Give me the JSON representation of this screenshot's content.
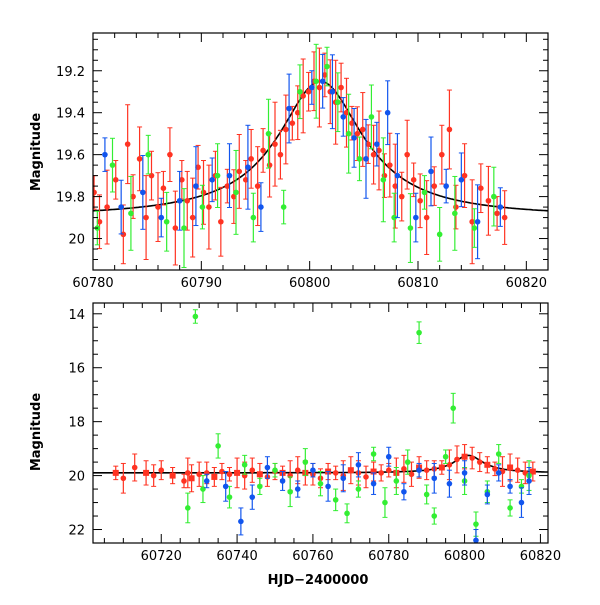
{
  "chart_data": [
    {
      "type": "scatter",
      "title": "",
      "xlabel": "",
      "ylabel": "Magnitude",
      "xlim": [
        60780,
        60822
      ],
      "ylim": [
        20.15,
        19.02
      ],
      "y_inverted": true,
      "grid": false,
      "xticks": [
        60780,
        60790,
        60800,
        60810,
        60820
      ],
      "yticks": [
        19.2,
        19.4,
        19.6,
        19.8,
        20.0
      ],
      "xtick_labels": [
        "60780",
        "60790",
        "60800",
        "60810",
        "60820"
      ],
      "ytick_labels": [
        "19.2",
        "19.4",
        "19.6",
        "19.8",
        "20"
      ],
      "colors": {
        "green": "#33ee33",
        "blue": "#1155ee",
        "red": "#ff3322",
        "model": "#000000"
      },
      "model_curve": {
        "baseline": 19.9,
        "peak_mag": 19.25,
        "t0": 60801,
        "half_width": 4.8
      },
      "series": [
        {
          "color": "red",
          "points": [
            [
              60780.1,
              19.78
            ],
            [
              60780.6,
              19.92
            ],
            [
              60781.3,
              19.85
            ],
            [
              60782.1,
              19.72
            ],
            [
              60782.8,
              19.98
            ],
            [
              60783.2,
              19.55
            ],
            [
              60783.7,
              19.8
            ],
            [
              60784.3,
              19.62
            ],
            [
              60784.9,
              19.9
            ],
            [
              60785.4,
              19.7
            ],
            [
              60786.0,
              19.85
            ],
            [
              60786.5,
              19.76
            ],
            [
              60787.1,
              19.6
            ],
            [
              60787.6,
              19.95
            ],
            [
              60788.2,
              19.72
            ],
            [
              60788.7,
              19.82
            ],
            [
              60789.2,
              19.9
            ],
            [
              60789.7,
              19.66
            ],
            [
              60790.2,
              19.78
            ],
            [
              60790.7,
              19.85
            ],
            [
              60791.3,
              19.7
            ],
            [
              60791.8,
              19.92
            ],
            [
              60792.4,
              19.75
            ],
            [
              60793.0,
              19.8
            ],
            [
              60793.5,
              19.68
            ],
            [
              60794.1,
              19.72
            ],
            [
              60794.6,
              19.62
            ],
            [
              60795.2,
              19.75
            ],
            [
              60795.7,
              19.58
            ],
            [
              60796.3,
              19.65
            ],
            [
              60796.8,
              19.55
            ],
            [
              60797.3,
              19.6
            ],
            [
              60797.8,
              19.48
            ],
            [
              60798.4,
              19.45
            ],
            [
              60798.9,
              19.4
            ],
            [
              60799.4,
              19.32
            ],
            [
              60799.9,
              19.3
            ],
            [
              60800.4,
              19.25
            ],
            [
              60800.9,
              19.28
            ],
            [
              60801.4,
              19.22
            ],
            [
              60801.9,
              19.3
            ],
            [
              60802.4,
              19.35
            ],
            [
              60802.9,
              19.28
            ],
            [
              60803.4,
              19.4
            ],
            [
              60803.9,
              19.45
            ],
            [
              60804.4,
              19.5
            ],
            [
              60804.9,
              19.48
            ],
            [
              60805.4,
              19.55
            ],
            [
              60805.9,
              19.6
            ],
            [
              60806.4,
              19.58
            ],
            [
              60806.9,
              19.7
            ],
            [
              60807.4,
              19.65
            ],
            [
              60807.9,
              19.75
            ],
            [
              60808.5,
              19.8
            ],
            [
              60809.0,
              19.6
            ],
            [
              60809.6,
              19.72
            ],
            [
              60810.2,
              19.82
            ],
            [
              60810.8,
              19.9
            ],
            [
              60811.5,
              19.75
            ],
            [
              60812.2,
              19.6
            ],
            [
              60812.9,
              19.48
            ],
            [
              60813.5,
              19.85
            ],
            [
              60814.3,
              19.7
            ],
            [
              60815.0,
              19.92
            ],
            [
              60815.8,
              19.76
            ],
            [
              60816.5,
              19.82
            ],
            [
              60817.3,
              19.88
            ],
            [
              60818.0,
              19.9
            ]
          ]
        },
        {
          "color": "green",
          "points": [
            [
              60780.4,
              19.95
            ],
            [
              60781.8,
              19.65
            ],
            [
              60783.5,
              19.88
            ],
            [
              60785.1,
              19.6
            ],
            [
              60786.8,
              19.92
            ],
            [
              60788.4,
              19.95
            ],
            [
              60790.1,
              19.85
            ],
            [
              60791.5,
              19.7
            ],
            [
              60793.2,
              19.78
            ],
            [
              60794.8,
              19.9
            ],
            [
              60796.2,
              19.5
            ],
            [
              60797.6,
              19.85
            ],
            [
              60799.1,
              19.3
            ],
            [
              60800.6,
              19.25
            ],
            [
              60801.6,
              19.18
            ],
            [
              60802.6,
              19.35
            ],
            [
              60803.6,
              19.5
            ],
            [
              60804.6,
              19.62
            ],
            [
              60805.7,
              19.42
            ],
            [
              60806.8,
              19.72
            ],
            [
              60807.8,
              19.9
            ],
            [
              60809.3,
              19.95
            ],
            [
              60810.6,
              19.78
            ],
            [
              60812.0,
              19.98
            ],
            [
              60813.4,
              19.88
            ],
            [
              60815.2,
              19.95
            ],
            [
              60817.0,
              19.8
            ]
          ]
        },
        {
          "color": "blue",
          "points": [
            [
              60781.1,
              19.6
            ],
            [
              60782.6,
              19.85
            ],
            [
              60784.6,
              19.78
            ],
            [
              60786.3,
              19.9
            ],
            [
              60788.0,
              19.82
            ],
            [
              60789.5,
              19.75
            ],
            [
              60791.0,
              19.72
            ],
            [
              60792.6,
              19.7
            ],
            [
              60794.3,
              19.66
            ],
            [
              60795.5,
              19.85
            ],
            [
              60798.1,
              19.38
            ],
            [
              60800.2,
              19.28
            ],
            [
              60801.2,
              19.25
            ],
            [
              60802.1,
              19.3
            ],
            [
              60803.1,
              19.42
            ],
            [
              60804.1,
              19.52
            ],
            [
              60805.2,
              19.62
            ],
            [
              60806.2,
              19.55
            ],
            [
              60807.2,
              19.4
            ],
            [
              60808.1,
              19.7
            ],
            [
              60809.8,
              19.9
            ],
            [
              60811.2,
              19.68
            ],
            [
              60812.6,
              19.75
            ],
            [
              60814.0,
              19.72
            ],
            [
              60815.5,
              19.92
            ],
            [
              60817.6,
              19.85
            ]
          ]
        }
      ]
    },
    {
      "type": "scatter",
      "title": "",
      "xlabel": "HJD−2400000",
      "ylabel": "Magnitude",
      "xlim": [
        60702,
        60822
      ],
      "ylim": [
        22.5,
        13.6
      ],
      "y_inverted": true,
      "grid": false,
      "xticks": [
        60720,
        60740,
        60760,
        60780,
        60800,
        60820
      ],
      "yticks": [
        14,
        16,
        18,
        20,
        22
      ],
      "xtick_labels": [
        "60720",
        "60740",
        "60760",
        "60780",
        "60800",
        "60820"
      ],
      "ytick_labels": [
        "14",
        "16",
        "18",
        "20",
        "22"
      ],
      "colors": {
        "green": "#33ee33",
        "blue": "#1155ee",
        "red": "#ff3322",
        "model": "#000000"
      },
      "model_curve": {
        "baseline": 19.9,
        "peak_mag": 19.25,
        "t0": 60801,
        "half_width": 4.8
      },
      "series": [
        {
          "color": "red",
          "points": [
            [
              60708,
              19.9
            ],
            [
              60710,
              20.1
            ],
            [
              60713,
              19.7
            ],
            [
              60716,
              19.9
            ],
            [
              60718,
              20.0
            ],
            [
              60720,
              19.8
            ],
            [
              60723,
              20.0
            ],
            [
              60726,
              20.2
            ],
            [
              60727,
              19.9
            ],
            [
              60728,
              20.1
            ],
            [
              60730,
              19.95
            ],
            [
              60732,
              19.9
            ],
            [
              60734,
              20.05
            ],
            [
              60736,
              19.85
            ],
            [
              60738,
              19.95
            ],
            [
              60740,
              19.9
            ],
            [
              60742,
              20.0
            ],
            [
              60744,
              19.8
            ],
            [
              60746,
              19.95
            ],
            [
              60748,
              20.05
            ],
            [
              60750,
              19.85
            ],
            [
              60752,
              19.9
            ],
            [
              60754,
              20.0
            ],
            [
              60756,
              19.8
            ],
            [
              60758,
              19.9
            ],
            [
              60760,
              19.95
            ],
            [
              60762,
              20.1
            ],
            [
              60764,
              19.85
            ],
            [
              60766,
              19.9
            ],
            [
              60768,
              20.0
            ],
            [
              60770,
              19.8
            ],
            [
              60772,
              19.9
            ],
            [
              60774,
              20.05
            ],
            [
              60776,
              19.85
            ],
            [
              60778,
              19.9
            ],
            [
              60780,
              19.8
            ],
            [
              60782,
              19.9
            ],
            [
              60784,
              19.75
            ],
            [
              60786,
              19.95
            ],
            [
              60788,
              19.7
            ],
            [
              60790,
              19.8
            ],
            [
              60792,
              19.75
            ],
            [
              60794,
              19.7
            ],
            [
              60796,
              19.6
            ],
            [
              60798,
              19.4
            ],
            [
              60800,
              19.3
            ],
            [
              60802,
              19.35
            ],
            [
              60804,
              19.5
            ],
            [
              60806,
              19.6
            ],
            [
              60808,
              19.75
            ],
            [
              60810,
              19.85
            ],
            [
              60812,
              19.7
            ],
            [
              60814,
              19.8
            ],
            [
              60816,
              19.9
            ],
            [
              60818,
              19.85
            ]
          ]
        },
        {
          "color": "green",
          "points": [
            [
              60729,
              14.1
            ],
            [
              60727,
              21.2
            ],
            [
              60731,
              20.5
            ],
            [
              60735,
              18.9
            ],
            [
              60738,
              20.8
            ],
            [
              60742,
              19.6
            ],
            [
              60746,
              20.4
            ],
            [
              60750,
              19.8
            ],
            [
              60754,
              20.6
            ],
            [
              60758,
              19.5
            ],
            [
              60762,
              20.3
            ],
            [
              60766,
              20.9
            ],
            [
              60769,
              21.4
            ],
            [
              60772,
              20.5
            ],
            [
              60776,
              19.2
            ],
            [
              60779,
              21.0
            ],
            [
              60782,
              20.2
            ],
            [
              60785,
              19.5
            ],
            [
              60788,
              14.7
            ],
            [
              60790,
              20.7
            ],
            [
              60792,
              21.5
            ],
            [
              60795,
              19.3
            ],
            [
              60797,
              17.5
            ],
            [
              60800,
              20.2
            ],
            [
              60803,
              21.8
            ],
            [
              60806,
              20.6
            ],
            [
              60809,
              19.2
            ],
            [
              60812,
              21.2
            ],
            [
              60815,
              20.4
            ],
            [
              60817,
              20.0
            ]
          ]
        },
        {
          "color": "blue",
          "points": [
            [
              60732,
              20.2
            ],
            [
              60737,
              20.4
            ],
            [
              60741,
              21.7
            ],
            [
              60744,
              20.8
            ],
            [
              60748,
              19.7
            ],
            [
              60752,
              20.2
            ],
            [
              60756,
              20.5
            ],
            [
              60760,
              19.8
            ],
            [
              60764,
              20.4
            ],
            [
              60768,
              20.1
            ],
            [
              60772,
              19.6
            ],
            [
              60776,
              20.3
            ],
            [
              60780,
              19.3
            ],
            [
              60784,
              20.6
            ],
            [
              60788,
              19.8
            ],
            [
              60792,
              20.1
            ],
            [
              60796,
              20.3
            ],
            [
              60800,
              19.9
            ],
            [
              60803,
              22.4
            ],
            [
              60806,
              20.7
            ],
            [
              60809,
              19.9
            ],
            [
              60812,
              20.4
            ],
            [
              60815,
              21.0
            ],
            [
              60817,
              20.2
            ]
          ]
        }
      ]
    }
  ]
}
